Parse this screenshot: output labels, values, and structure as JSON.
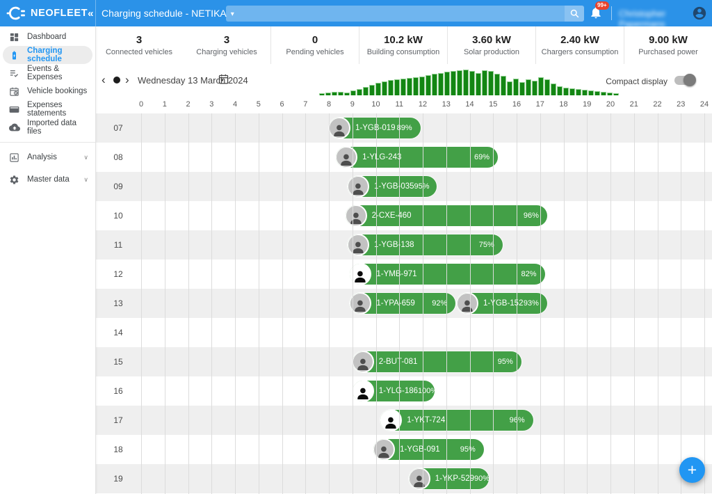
{
  "topbar": {
    "brand": "NEOFLEET",
    "collapse": "«",
    "title": "Charging schedule - NETIKA",
    "title_caret": "▾",
    "search_value": "",
    "notifications_badge": "99+",
    "user_name": "Christopher Papermans"
  },
  "sidebar": {
    "items": [
      {
        "label": "Dashboard",
        "icon": "dashboard-icon",
        "active": false
      },
      {
        "label": "Charging schedule",
        "icon": "battery-charging-icon",
        "active": true
      },
      {
        "label": "Events & Expenses",
        "icon": "list-check-icon",
        "active": false
      },
      {
        "label": "Vehicle bookings",
        "icon": "calendar-clock-icon",
        "active": false
      },
      {
        "label": "Expenses statements",
        "icon": "credit-card-icon",
        "active": false
      },
      {
        "label": "Imported data files",
        "icon": "cloud-upload-icon",
        "active": false
      },
      {
        "divider": true
      },
      {
        "label": "Analysis",
        "icon": "bar-chart-icon",
        "active": false,
        "expandable": true,
        "chevron": "∨"
      },
      {
        "gap": true
      },
      {
        "label": "Master data",
        "icon": "gear-icon",
        "active": false,
        "expandable": true,
        "chevron": "∨"
      }
    ]
  },
  "stats": [
    {
      "value": "3",
      "label": "Connected vehicles"
    },
    {
      "value": "3",
      "label": "Charging vehicles"
    },
    {
      "value": "0",
      "label": "Pending vehicles"
    },
    {
      "value": "10.2 kW",
      "label": "Building consumption"
    },
    {
      "value": "3.60 kW",
      "label": "Solar production"
    },
    {
      "value": "2.40 kW",
      "label": "Chargers consumption"
    },
    {
      "value": "9.00 kW",
      "label": "Purchased power"
    }
  ],
  "date_nav": {
    "prev": "‹",
    "next": "›",
    "date": "Wednesday 13 March 2024",
    "compact_label": "Compact display"
  },
  "fab": {
    "label": "+"
  },
  "colors": {
    "topbar_blue": "#2B92E8",
    "accent_blue": "#2196F3",
    "gantt_green": "#43A047",
    "histogram_green": "#138613",
    "badge_red": "#E8432D",
    "row_alt_gray": "#EFEFEF"
  },
  "chart_data": [
    {
      "type": "bar",
      "name": "daily-load-profile-histogram",
      "note": "small green load histogram above hour axis, heights relative 0-36",
      "values": [
        2,
        3,
        4,
        4,
        3,
        6,
        8,
        11,
        14,
        17,
        19,
        21,
        22,
        23,
        24,
        25,
        26,
        28,
        30,
        31,
        33,
        34,
        35,
        36,
        34,
        31,
        35,
        34,
        30,
        27,
        19,
        23,
        18,
        22,
        20,
        25,
        22,
        16,
        12,
        10,
        9,
        8,
        7,
        6,
        5,
        4,
        3,
        2
      ]
    },
    {
      "type": "gantt",
      "name": "charging-schedule",
      "xlabel": "hour of day",
      "x_min": 0,
      "x_max": 24,
      "hour_ticks": [
        0,
        1,
        2,
        3,
        4,
        5,
        6,
        7,
        8,
        9,
        10,
        11,
        12,
        13,
        14,
        15,
        16,
        17,
        18,
        19,
        20,
        21,
        22,
        23,
        24
      ],
      "rows": [
        {
          "label": "07",
          "bars": [
            {
              "vehicle": "1-YGB-019",
              "charge": "89%",
              "start": 8.0,
              "end": 11.9,
              "avatar": "photo"
            }
          ]
        },
        {
          "label": "08",
          "bars": [
            {
              "vehicle": "1-YLG-243",
              "charge": "69%",
              "start": 8.3,
              "end": 15.2,
              "avatar": "photo"
            }
          ]
        },
        {
          "label": "09",
          "bars": [
            {
              "vehicle": "1-YGB-035",
              "charge": "95%",
              "start": 8.8,
              "end": 12.6,
              "avatar": "photo"
            }
          ]
        },
        {
          "label": "10",
          "bars": [
            {
              "vehicle": "2-CXE-460",
              "charge": "96%",
              "start": 8.7,
              "end": 17.3,
              "avatar": "photo"
            }
          ]
        },
        {
          "label": "11",
          "bars": [
            {
              "vehicle": "1-YGB-138",
              "charge": "75%",
              "start": 8.8,
              "end": 15.4,
              "avatar": "photo"
            }
          ]
        },
        {
          "label": "12",
          "bars": [
            {
              "vehicle": "1-YMB-971",
              "charge": "82%",
              "start": 8.9,
              "end": 17.2,
              "avatar": "default"
            }
          ]
        },
        {
          "label": "13",
          "bars": [
            {
              "vehicle": "1-YPA-659",
              "charge": "92%",
              "start": 8.9,
              "end": 13.4,
              "avatar": "photo"
            },
            {
              "vehicle": "1-YGB-152",
              "charge": "93%",
              "start": 13.45,
              "end": 17.3,
              "avatar": "photo"
            }
          ]
        },
        {
          "label": "14",
          "bars": []
        },
        {
          "label": "15",
          "bars": [
            {
              "vehicle": "2-BUT-081",
              "charge": "95%",
              "start": 9.0,
              "end": 16.2,
              "avatar": "photo"
            }
          ]
        },
        {
          "label": "16",
          "bars": [
            {
              "vehicle": "1-YLG-186",
              "charge": "100%",
              "start": 9.0,
              "end": 12.5,
              "avatar": "default"
            }
          ]
        },
        {
          "label": "17",
          "bars": [
            {
              "vehicle": "1-YKT-724",
              "charge": "96%",
              "start": 10.2,
              "end": 16.7,
              "avatar": "default"
            }
          ]
        },
        {
          "label": "18",
          "bars": [
            {
              "vehicle": "1-YGB-091",
              "charge": "95%",
              "start": 9.9,
              "end": 14.6,
              "avatar": "photo"
            }
          ]
        },
        {
          "label": "19",
          "bars": [
            {
              "vehicle": "1-YKP-529",
              "charge": "90%",
              "start": 11.4,
              "end": 14.8,
              "avatar": "photo"
            }
          ]
        }
      ]
    }
  ]
}
